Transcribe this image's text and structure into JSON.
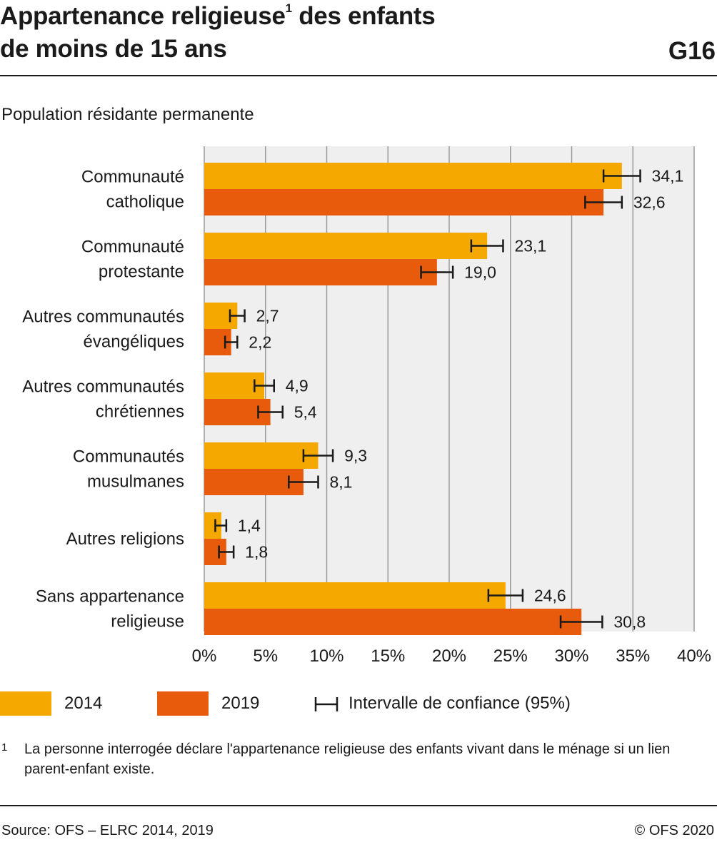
{
  "header": {
    "title_line1": "Appartenance religieuse",
    "title_sup": "1",
    "title_line1_rest": " des enfants",
    "title_line2": "de moins de 15 ans",
    "code": "G16"
  },
  "subtitle": "Population résidante permanente",
  "legend": {
    "series_2014": "2014",
    "series_2019": "2019",
    "ci": "Intervalle de confiance (95%)"
  },
  "footnote": {
    "number": "1",
    "text": "La personne interrogée déclare l'appartenance religieuse des enfants vivant dans le ménage si un lien parent-enfant existe."
  },
  "footer": {
    "source": "Source: OFS – ELRC 2014, 2019",
    "copyright": "© OFS 2020"
  },
  "colors": {
    "series_2014": "#F5A800",
    "series_2019": "#E85A0C",
    "plot_bg": "#EFEFEF",
    "grid": "#9A9A9A",
    "text": "#1a1a1a"
  },
  "chart_data": {
    "type": "bar",
    "orientation": "horizontal",
    "categories": [
      [
        "Communauté",
        "catholique"
      ],
      [
        "Communauté",
        "protestante"
      ],
      [
        "Autres communautés",
        "évangéliques"
      ],
      [
        "Autres communautés",
        "chrétiennes"
      ],
      [
        "Communautés",
        "musulmanes"
      ],
      [
        "Autres religions"
      ],
      [
        "Sans appartenance",
        "religieuse"
      ]
    ],
    "series": [
      {
        "name": "2014",
        "values": [
          34.1,
          23.1,
          2.7,
          4.9,
          9.3,
          1.4,
          24.6
        ],
        "labels": [
          "34,1",
          "23,1",
          "2,7",
          "4,9",
          "9,3",
          "1,4",
          "24,6"
        ],
        "ci_low": [
          32.6,
          21.8,
          2.1,
          4.1,
          8.1,
          0.9,
          23.2
        ],
        "ci_high": [
          35.6,
          24.4,
          3.3,
          5.7,
          10.5,
          1.8,
          26.0
        ]
      },
      {
        "name": "2019",
        "values": [
          32.6,
          19.0,
          2.2,
          5.4,
          8.1,
          1.8,
          30.8
        ],
        "labels": [
          "32,6",
          "19,0",
          "2,2",
          "5,4",
          "8,1",
          "1,8",
          "30,8"
        ],
        "ci_low": [
          31.1,
          17.7,
          1.7,
          4.4,
          6.9,
          1.2,
          29.1
        ],
        "ci_high": [
          34.1,
          20.3,
          2.7,
          6.4,
          9.3,
          2.4,
          32.5
        ]
      }
    ],
    "xlim": [
      0,
      40
    ],
    "xticks": [
      "0%",
      "5%",
      "10%",
      "15%",
      "20%",
      "25%",
      "30%",
      "35%",
      "40%"
    ],
    "xlabel": "",
    "ylabel": "",
    "grid": true,
    "legend_position": "bottom"
  }
}
